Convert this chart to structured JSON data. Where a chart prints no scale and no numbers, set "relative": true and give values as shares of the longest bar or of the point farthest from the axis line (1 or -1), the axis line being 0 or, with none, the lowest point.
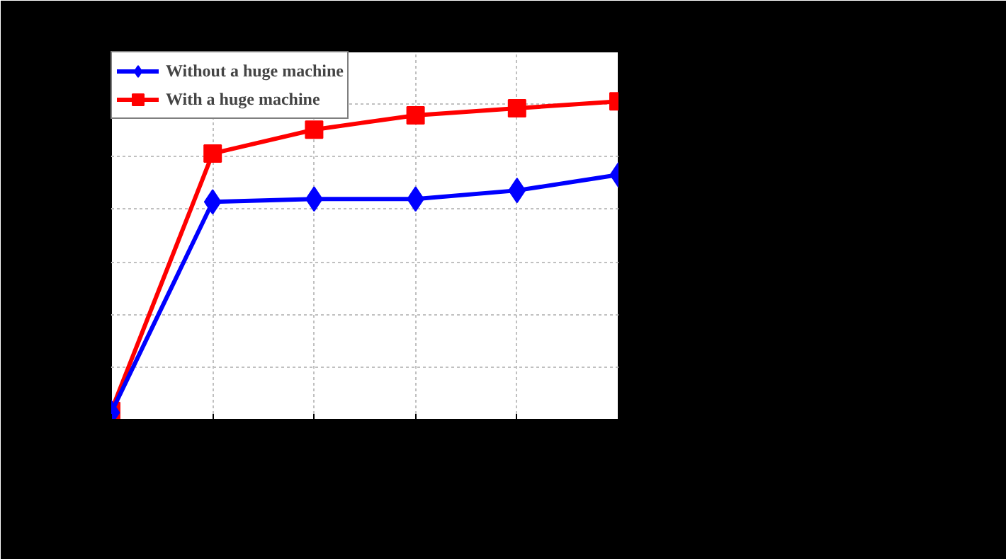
{
  "chart_data": {
    "type": "line",
    "relative": true,
    "categories": [
      null,
      null,
      null,
      null,
      null,
      null
    ],
    "grid": true,
    "legend": "top left",
    "line_style": "solid",
    "series": [
      {
        "name": "Without a huge machine",
        "color": "#0000ff",
        "marker": "diamond",
        "values": [
          0.022,
          0.684,
          0.693,
          0.693,
          0.72,
          0.769
        ]
      },
      {
        "name": "With a huge machine",
        "color": "#ff0000",
        "marker": "square",
        "values": [
          0.027,
          0.836,
          0.911,
          0.956,
          0.978,
          1.0
        ]
      }
    ]
  }
}
